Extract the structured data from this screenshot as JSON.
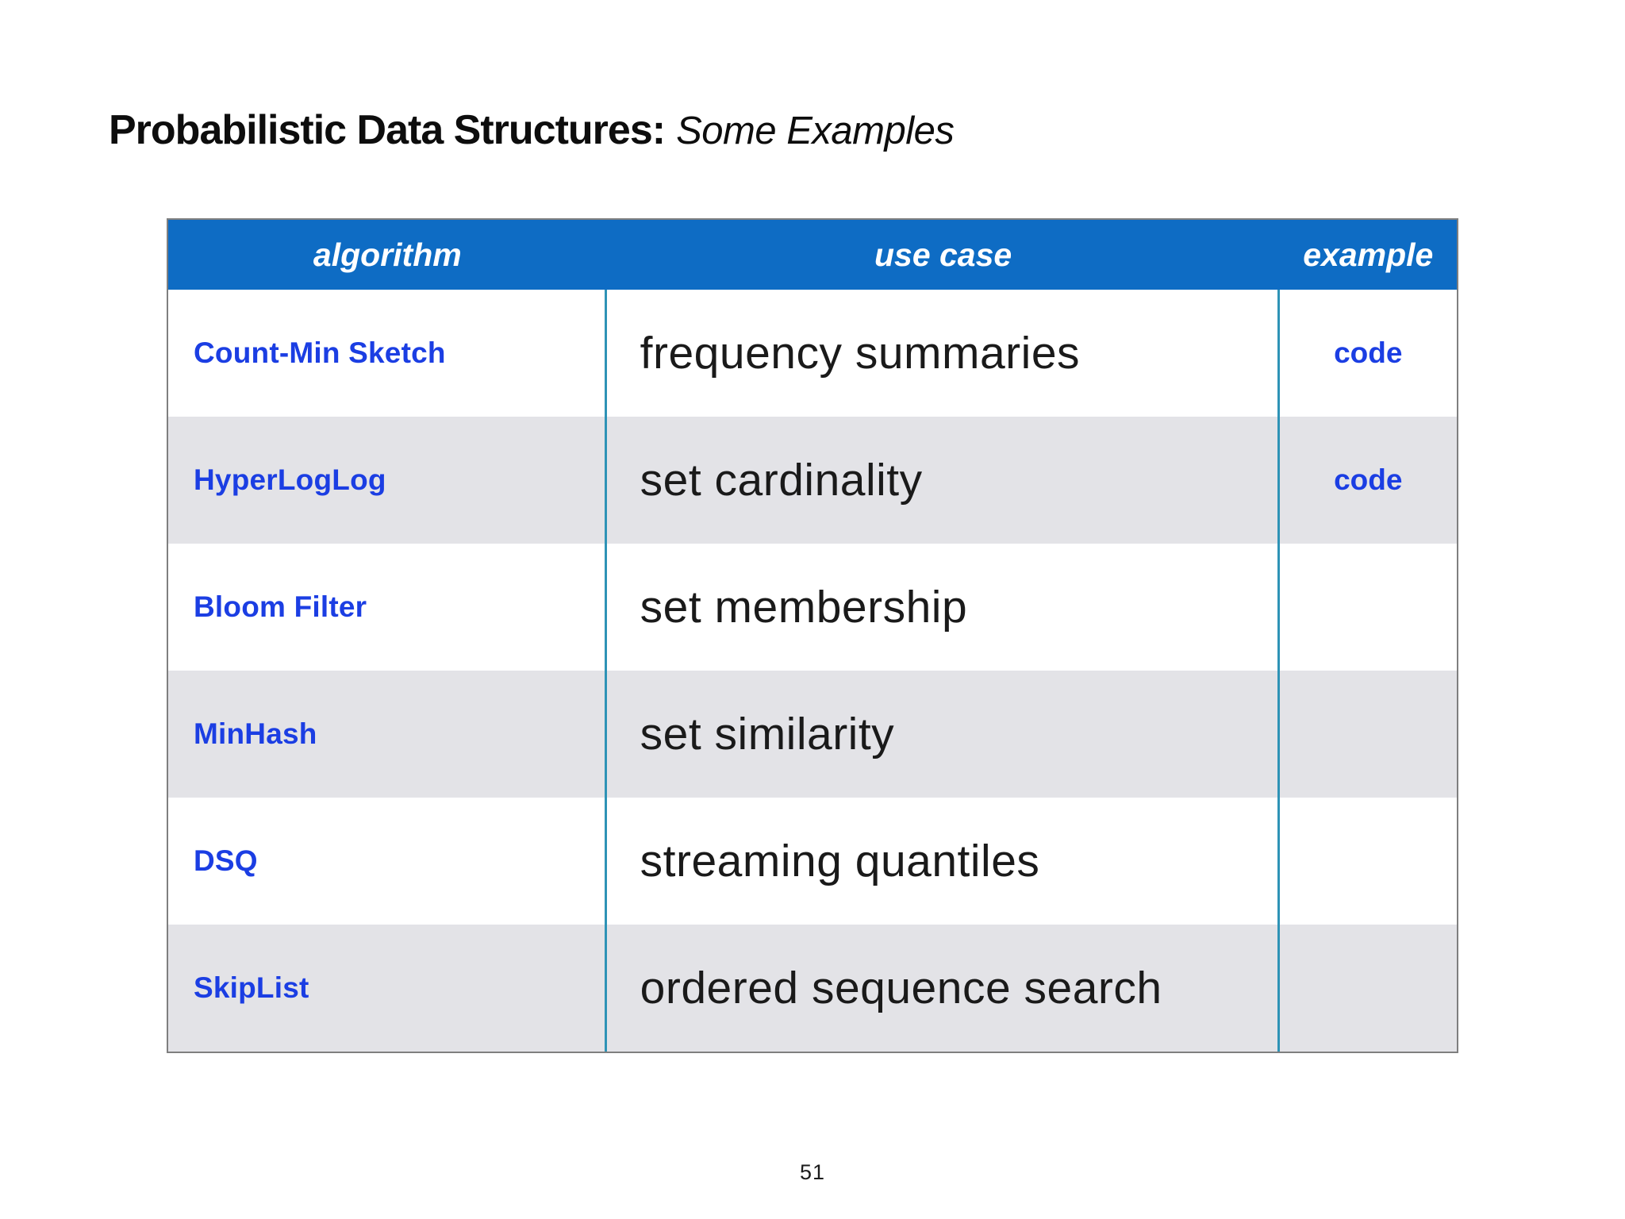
{
  "slide": {
    "title_bold": "Probabilistic Data Structures:",
    "title_italic": "Some Examples",
    "page_number": "51"
  },
  "table": {
    "columns": [
      {
        "label": "algorithm"
      },
      {
        "label": "use case"
      },
      {
        "label": "example"
      }
    ],
    "rows": [
      {
        "algorithm": "Count-Min Sketch",
        "use_case": "frequency summaries",
        "example": "code"
      },
      {
        "algorithm": "HyperLogLog",
        "use_case": "set cardinality",
        "example": "code"
      },
      {
        "algorithm": "Bloom Filter",
        "use_case": "set membership",
        "example": ""
      },
      {
        "algorithm": "MinHash",
        "use_case": "set similarity",
        "example": ""
      },
      {
        "algorithm": "DSQ",
        "use_case": "streaming quantiles",
        "example": ""
      },
      {
        "algorithm": "SkipList",
        "use_case": "ordered sequence search",
        "example": ""
      }
    ],
    "colors": {
      "header_bg": "#0e6cc4",
      "header_text": "#ffffff",
      "row_bg": "#ffffff",
      "row_alt_bg": "#e3e3e7",
      "link_blue": "#1b3ee3",
      "divider_teal": "#2e93b6",
      "border_gray": "#7f7f7f",
      "use_case_text": "#1a1a1a"
    }
  }
}
